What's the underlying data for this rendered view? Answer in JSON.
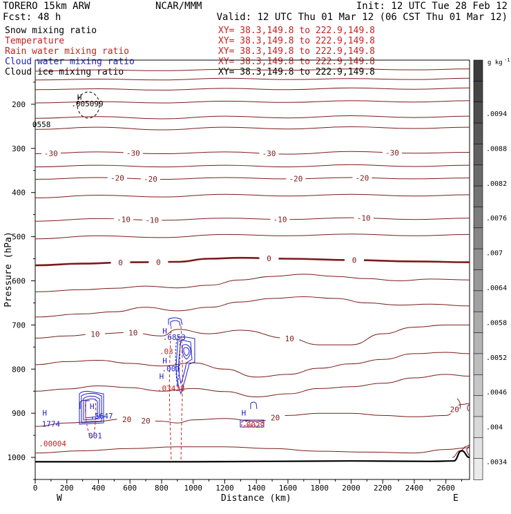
{
  "header": {
    "model": "TORERO  15km ARW",
    "center": "NCAR/MMM",
    "init": "Init: 12 UTC Tue 28 Feb 12",
    "fcst": "Fcst:   48 h",
    "valid": "Valid: 12 UTC Thu 01 Mar 12 (06 CST Thu 01 Mar 12)"
  },
  "legend": [
    {
      "label": "Snow mixing ratio",
      "xy": "XY=  38.3,149.8 to 222.9,149.8",
      "color": "#000000",
      "xy_color": "#c82020"
    },
    {
      "label": "Temperature",
      "xy": "XY=  38.3,149.8 to 222.9,149.8",
      "color": "#c82020",
      "xy_color": "#c82020"
    },
    {
      "label": "Rain water mixing ratio",
      "xy": "XY=  38.3,149.8 to 222.9,149.8",
      "color": "#c82020",
      "xy_color": "#c82020"
    },
    {
      "label": "Cloud water mixing ratio",
      "xy": "XY=  38.3,149.8 to 222.9,149.8",
      "color": "#1f1fc8",
      "xy_color": "#c82020"
    },
    {
      "label": "Cloud ice mixing ratio",
      "xy": "XY=  38.3,149.8 to 222.9,149.8",
      "color": "#000000",
      "xy_color": "#000000"
    }
  ],
  "colorbar": {
    "unit": "g kg",
    "unit_exp": "-1",
    "ticks": [
      ".0094",
      ".0088",
      ".0082",
      ".0076",
      ".007",
      ".0064",
      ".0058",
      ".0052",
      ".0046",
      ".004",
      ".0034"
    ]
  },
  "annotations": {
    "h_marks": [
      {
        "text": "H",
        "x": 280,
        "p": 190
      },
      {
        "text": "H",
        "x": 60,
        "p": 905
      },
      {
        "text": "H",
        "x": 360,
        "p": 890
      },
      {
        "text": "H",
        "x": 820,
        "p": 720
      },
      {
        "text": "H",
        "x": 820,
        "p": 787
      },
      {
        "text": "H",
        "x": 800,
        "p": 822
      },
      {
        "text": "H",
        "x": 1320,
        "p": 905
      }
    ],
    "values": [
      {
        "text": ".005099",
        "x": 330,
        "p": 205,
        "color": "#000000"
      },
      {
        "text": "0558",
        "x": 40,
        "p": 252,
        "color": "#000000"
      },
      {
        "text": "1774",
        "x": 100,
        "p": 930,
        "color": "#1f1fc8"
      },
      {
        "text": ".00004",
        "x": 110,
        "p": 975,
        "color": "#c82020"
      },
      {
        "text": ".5647",
        "x": 420,
        "p": 912,
        "color": "#1f1fc8"
      },
      {
        "text": "001",
        "x": 380,
        "p": 957,
        "color": "#1f1fc8"
      },
      {
        "text": ".6853",
        "x": 880,
        "p": 734,
        "color": "#1f1fc8"
      },
      {
        "text": ".03",
        "x": 830,
        "p": 766,
        "color": "#c82020"
      },
      {
        "text": ".001",
        "x": 860,
        "p": 805,
        "color": "#1f1fc8"
      },
      {
        "text": ".03438",
        "x": 860,
        "p": 850,
        "color": "#c82020"
      },
      {
        "text": ".0029",
        "x": 1380,
        "p": 933,
        "color": "#c82020"
      }
    ]
  },
  "chart_data": {
    "type": "contour",
    "title": "",
    "xlabel": "Distance (km)",
    "ylabel": "Pressure (hPa)",
    "xlim": [
      0,
      2750
    ],
    "ylim": [
      1050,
      100
    ],
    "xticks": [
      0,
      200,
      400,
      600,
      800,
      1000,
      1200,
      1400,
      1600,
      1800,
      2000,
      2200,
      2400,
      2600
    ],
    "yticks": [
      200,
      300,
      400,
      500,
      600,
      700,
      800,
      900,
      1000
    ],
    "x_end_labels": {
      "left": "W",
      "right": "E"
    },
    "temperature_contours": [
      {
        "level": -50,
        "points": [
          [
            0,
            125
          ],
          [
            400,
            122
          ],
          [
            800,
            124
          ],
          [
            1200,
            121
          ],
          [
            1600,
            123
          ],
          [
            2000,
            120
          ],
          [
            2400,
            122
          ],
          [
            2750,
            120
          ]
        ],
        "labels": []
      },
      {
        "level": -50,
        "points": [
          [
            0,
            145
          ],
          [
            400,
            143
          ],
          [
            800,
            145
          ],
          [
            1200,
            141
          ],
          [
            1600,
            144
          ],
          [
            2000,
            142
          ],
          [
            2400,
            144
          ],
          [
            2750,
            141
          ]
        ],
        "labels": []
      },
      {
        "level": -45,
        "points": [
          [
            0,
            167
          ],
          [
            400,
            165
          ],
          [
            800,
            168
          ],
          [
            1200,
            164
          ],
          [
            1600,
            167
          ],
          [
            2000,
            163
          ],
          [
            2400,
            166
          ],
          [
            2750,
            163
          ]
        ],
        "labels": []
      },
      {
        "level": -45,
        "points": [
          [
            0,
            197
          ],
          [
            400,
            194
          ],
          [
            800,
            197
          ],
          [
            1200,
            193
          ],
          [
            1600,
            196
          ],
          [
            2000,
            192
          ],
          [
            2400,
            195
          ],
          [
            2750,
            192
          ]
        ],
        "labels": []
      },
      {
        "level": -40,
        "points": [
          [
            0,
            232
          ],
          [
            400,
            228
          ],
          [
            800,
            233
          ],
          [
            1200,
            227
          ],
          [
            1600,
            231
          ],
          [
            2000,
            226
          ],
          [
            2400,
            230
          ],
          [
            2750,
            227
          ]
        ],
        "labels": []
      },
      {
        "level": -35,
        "points": [
          [
            0,
            257
          ],
          [
            400,
            252
          ],
          [
            800,
            258
          ],
          [
            1200,
            252
          ],
          [
            1600,
            256
          ],
          [
            2000,
            251
          ],
          [
            2400,
            255
          ],
          [
            2750,
            252
          ]
        ],
        "labels": []
      },
      {
        "level": -30,
        "points": [
          [
            0,
            312
          ],
          [
            400,
            308
          ],
          [
            800,
            312
          ],
          [
            1200,
            308
          ],
          [
            1600,
            313
          ],
          [
            2000,
            307
          ],
          [
            2400,
            311
          ],
          [
            2750,
            309
          ]
        ],
        "labels": [
          {
            "text": "-30",
            "x": 100
          },
          {
            "text": "-30",
            "x": 620
          },
          {
            "text": "-30",
            "x": 1480
          },
          {
            "text": "-30",
            "x": 2260
          }
        ]
      },
      {
        "level": -25,
        "points": [
          [
            0,
            342
          ],
          [
            400,
            338
          ],
          [
            800,
            342
          ],
          [
            1200,
            338
          ],
          [
            1600,
            342
          ],
          [
            2000,
            337
          ],
          [
            2400,
            341
          ],
          [
            2750,
            338
          ]
        ],
        "labels": []
      },
      {
        "level": -20,
        "points": [
          [
            0,
            370
          ],
          [
            400,
            366
          ],
          [
            800,
            370
          ],
          [
            1200,
            366
          ],
          [
            1600,
            369
          ],
          [
            2000,
            366
          ],
          [
            2400,
            369
          ],
          [
            2750,
            367
          ]
        ],
        "labels": [
          {
            "text": "-20",
            "x": 520
          },
          {
            "text": "-20",
            "x": 730
          },
          {
            "text": "-20",
            "x": 1650
          },
          {
            "text": "-20",
            "x": 2070
          }
        ]
      },
      {
        "level": -15,
        "points": [
          [
            0,
            412
          ],
          [
            400,
            406
          ],
          [
            800,
            410
          ],
          [
            1200,
            404
          ],
          [
            1600,
            408
          ],
          [
            2000,
            404
          ],
          [
            2400,
            408
          ],
          [
            2750,
            405
          ]
        ],
        "labels": []
      },
      {
        "level": -10,
        "points": [
          [
            0,
            465
          ],
          [
            400,
            459
          ],
          [
            800,
            463
          ],
          [
            1200,
            458
          ],
          [
            1600,
            461
          ],
          [
            2000,
            457
          ],
          [
            2400,
            461
          ],
          [
            2750,
            458
          ]
        ],
        "labels": [
          {
            "text": "-10",
            "x": 560
          },
          {
            "text": "-10",
            "x": 740
          },
          {
            "text": "-10",
            "x": 1550
          },
          {
            "text": "-10",
            "x": 2080
          }
        ]
      },
      {
        "level": -5,
        "points": [
          [
            0,
            505
          ],
          [
            400,
            498
          ],
          [
            800,
            502
          ],
          [
            1200,
            495
          ],
          [
            1600,
            498
          ],
          [
            2000,
            494
          ],
          [
            2400,
            498
          ],
          [
            2750,
            495
          ]
        ],
        "labels": []
      },
      {
        "level": 0,
        "points": [
          [
            0,
            565
          ],
          [
            300,
            561
          ],
          [
            600,
            558
          ],
          [
            900,
            557
          ],
          [
            1100,
            550
          ],
          [
            1300,
            548
          ],
          [
            1600,
            550
          ],
          [
            2000,
            553
          ],
          [
            2400,
            556
          ],
          [
            2750,
            558
          ]
        ],
        "labels": [
          {
            "text": "0",
            "x": 540
          },
          {
            "text": "0",
            "x": 780
          },
          {
            "text": "0",
            "x": 1480
          },
          {
            "text": "0",
            "x": 2020
          }
        ]
      },
      {
        "level": 5,
        "points": [
          [
            0,
            625
          ],
          [
            300,
            620
          ],
          [
            500,
            617
          ],
          [
            700,
            612
          ],
          [
            900,
            616
          ],
          [
            1100,
            610
          ],
          [
            1300,
            598
          ],
          [
            1500,
            590
          ],
          [
            1700,
            585
          ],
          [
            1900,
            590
          ],
          [
            2100,
            595
          ],
          [
            2300,
            600
          ],
          [
            2500,
            596
          ],
          [
            2750,
            598
          ]
        ],
        "labels": []
      },
      {
        "level": 7,
        "points": [
          [
            0,
            682
          ],
          [
            300,
            675
          ],
          [
            500,
            670
          ],
          [
            700,
            660
          ],
          [
            900,
            668
          ],
          [
            1100,
            660
          ],
          [
            1300,
            648
          ],
          [
            1500,
            640
          ],
          [
            1700,
            636
          ],
          [
            1900,
            640
          ],
          [
            2100,
            650
          ],
          [
            2300,
            655
          ],
          [
            2500,
            653
          ],
          [
            2750,
            657
          ]
        ],
        "labels": []
      },
      {
        "level": 10,
        "points": [
          [
            0,
            730
          ],
          [
            200,
            725
          ],
          [
            400,
            720
          ],
          [
            600,
            717
          ],
          [
            800,
            725
          ],
          [
            900,
            710
          ],
          [
            1100,
            720
          ],
          [
            1300,
            712
          ],
          [
            1600,
            730
          ],
          [
            1800,
            745
          ],
          [
            2000,
            745
          ],
          [
            2200,
            720
          ],
          [
            2400,
            705
          ],
          [
            2600,
            700
          ],
          [
            2750,
            700
          ]
        ],
        "labels": [
          {
            "text": "10",
            "x": 380
          },
          {
            "text": "10",
            "x": 620
          },
          {
            "text": "10",
            "x": 1610
          }
        ]
      },
      {
        "level": 13,
        "points": [
          [
            0,
            790
          ],
          [
            200,
            783
          ],
          [
            400,
            780
          ],
          [
            600,
            787
          ],
          [
            800,
            793
          ],
          [
            1000,
            786
          ],
          [
            1200,
            800
          ],
          [
            1400,
            818
          ],
          [
            1600,
            812
          ],
          [
            1800,
            798
          ],
          [
            2000,
            788
          ],
          [
            2200,
            778
          ],
          [
            2400,
            765
          ],
          [
            2600,
            762
          ],
          [
            2750,
            765
          ]
        ],
        "labels": []
      },
      {
        "level": 15,
        "points": [
          [
            0,
            850
          ],
          [
            200,
            845
          ],
          [
            400,
            838
          ],
          [
            600,
            842
          ],
          [
            800,
            850
          ],
          [
            1000,
            844
          ],
          [
            1200,
            851
          ],
          [
            1400,
            863
          ],
          [
            1600,
            856
          ],
          [
            1800,
            844
          ],
          [
            2000,
            840
          ],
          [
            2200,
            832
          ],
          [
            2400,
            820
          ],
          [
            2600,
            812
          ],
          [
            2750,
            816
          ]
        ],
        "labels": []
      },
      {
        "level": 20,
        "points": [
          [
            0,
            930
          ],
          [
            200,
            922
          ],
          [
            400,
            918
          ],
          [
            550,
            913
          ],
          [
            700,
            917
          ],
          [
            800,
            918
          ],
          [
            900,
            922
          ],
          [
            1000,
            915
          ],
          [
            1200,
            912
          ],
          [
            1400,
            918
          ],
          [
            1600,
            905
          ],
          [
            1800,
            900
          ],
          [
            2000,
            900
          ],
          [
            2200,
            905
          ],
          [
            2400,
            908
          ],
          [
            2600,
            905
          ],
          [
            2700,
            880
          ],
          [
            2750,
            878
          ]
        ],
        "labels": [
          {
            "text": "20",
            "x": 580
          },
          {
            "text": "20",
            "x": 700
          },
          {
            "text": "20",
            "x": 1520
          },
          {
            "text": "20",
            "x": 2655
          }
        ]
      },
      {
        "level": 23,
        "points": [
          [
            0,
            990
          ],
          [
            300,
            985
          ],
          [
            600,
            980
          ],
          [
            900,
            976
          ],
          [
            1200,
            976
          ],
          [
            1500,
            980
          ],
          [
            1800,
            986
          ],
          [
            2100,
            988
          ],
          [
            2400,
            990
          ],
          [
            2600,
            982
          ],
          [
            2750,
            978
          ]
        ],
        "labels": []
      },
      {
        "level": 25,
        "points": [
          [
            2640,
            1000
          ],
          [
            2690,
            985
          ],
          [
            2730,
            975
          ],
          [
            2750,
            972
          ]
        ],
        "labels": []
      }
    ],
    "terrain_line": [
      [
        0,
        1010
      ],
      [
        500,
        1010
      ],
      [
        1000,
        1010
      ],
      [
        1500,
        1009
      ],
      [
        2000,
        1008
      ],
      [
        2500,
        1009
      ],
      [
        2650,
        1008
      ],
      [
        2700,
        985
      ],
      [
        2750,
        1000
      ]
    ]
  }
}
